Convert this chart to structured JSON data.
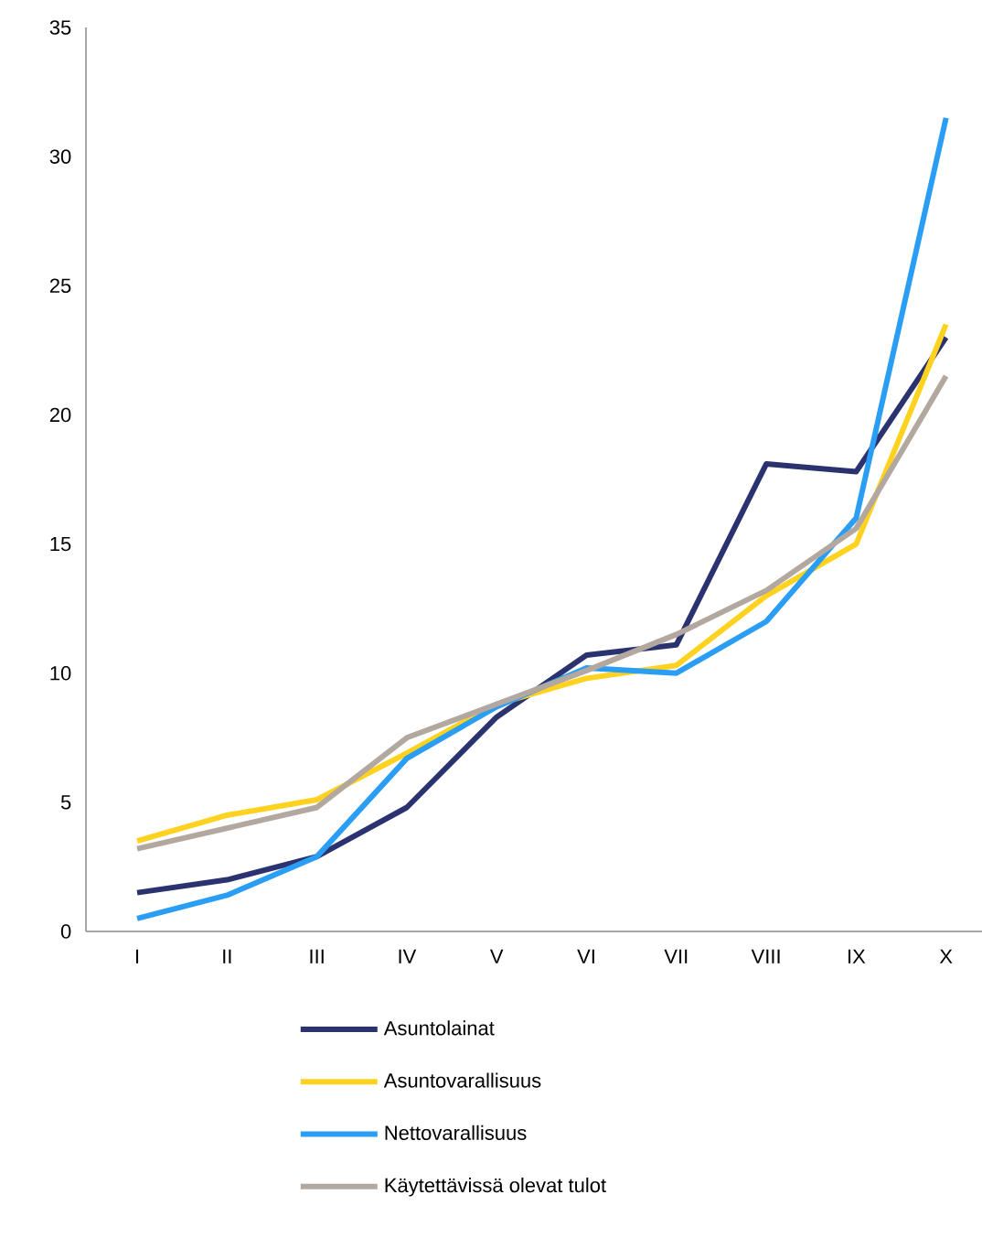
{
  "chart_data": {
    "type": "line",
    "categories": [
      "I",
      "II",
      "III",
      "IV",
      "V",
      "VI",
      "VII",
      "VIII",
      "IX",
      "X"
    ],
    "ylim": [
      0,
      35
    ],
    "yticks": [
      0,
      5,
      10,
      15,
      20,
      25,
      30,
      35
    ],
    "grid": false,
    "legend": "bottom",
    "marker": "none",
    "line_style": "solid",
    "series": [
      {
        "name": "Asuntolainat",
        "color": "#2b3270",
        "values": [
          1.5,
          2.0,
          2.9,
          4.8,
          8.3,
          10.7,
          11.1,
          18.1,
          17.8,
          23.0
        ]
      },
      {
        "name": "Asuntovarallisuus",
        "color": "#ffd21f",
        "values": [
          3.5,
          4.5,
          5.1,
          6.9,
          8.8,
          9.8,
          10.3,
          13.0,
          15.0,
          23.5
        ]
      },
      {
        "name": "Nettovarallisuus",
        "color": "#2a9df4",
        "values": [
          0.5,
          1.4,
          2.9,
          6.7,
          8.7,
          10.2,
          10.0,
          12.0,
          16.0,
          31.5
        ]
      },
      {
        "name": "Käytettävissä olevat tulot",
        "color": "#b2a8a0",
        "values": [
          3.2,
          4.0,
          4.8,
          7.5,
          8.8,
          10.1,
          11.5,
          13.2,
          15.6,
          21.5
        ]
      }
    ]
  }
}
